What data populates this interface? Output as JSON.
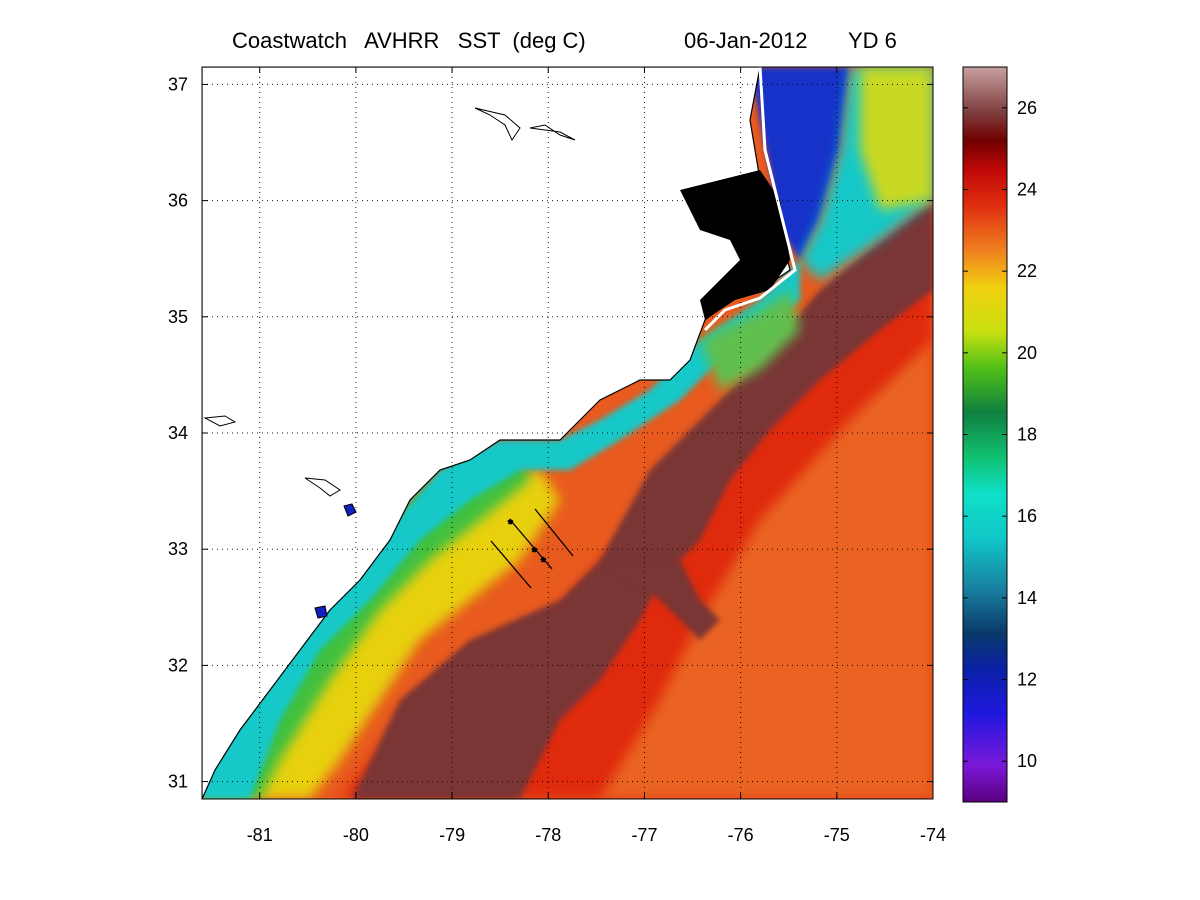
{
  "title": {
    "source": "Coastwatch   AVHRR   SST  (deg C)",
    "date": "06-Jan-2012",
    "yearday": "YD 6"
  },
  "map": {
    "lon_range": [
      -81.6,
      -74
    ],
    "lat_range": [
      30.85,
      37.15
    ],
    "lon_ticks": [
      "-81",
      "-80",
      "-79",
      "-78",
      "-77",
      "-76",
      "-75",
      "-74"
    ],
    "lat_ticks": [
      "31",
      "32",
      "33",
      "34",
      "35",
      "36",
      "37"
    ],
    "grid": "dotted"
  },
  "colorbar": {
    "min": 9,
    "max": 27,
    "tick_labels": [
      "10",
      "12",
      "14",
      "16",
      "18",
      "20",
      "22",
      "24",
      "26"
    ]
  },
  "colors": {
    "land": "#ffffff",
    "coastline": "#000000",
    "sound_mask": "#000000"
  }
}
